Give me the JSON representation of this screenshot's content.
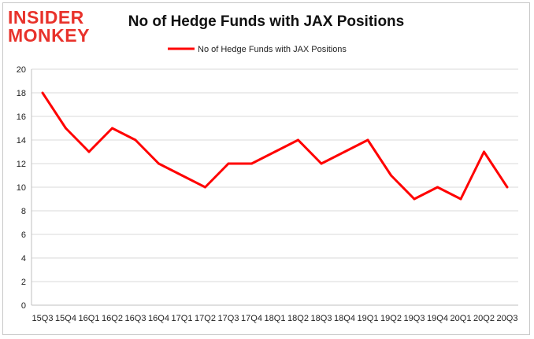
{
  "logo": {
    "line1": "INSIDER",
    "line2": "MONKEY",
    "color": "#e8322b"
  },
  "chart_data": {
    "type": "line",
    "title": "No of Hedge Funds with JAX Positions",
    "xlabel": "",
    "ylabel": "",
    "categories": [
      "15Q3",
      "15Q4",
      "16Q1",
      "16Q2",
      "16Q3",
      "16Q4",
      "17Q1",
      "17Q2",
      "17Q3",
      "17Q4",
      "18Q1",
      "18Q2",
      "18Q3",
      "18Q4",
      "19Q1",
      "19Q2",
      "19Q3",
      "19Q4",
      "20Q1",
      "20Q2",
      "20Q3"
    ],
    "series": [
      {
        "name": "No of Hedge Funds with JAX Positions",
        "color": "#ff0000",
        "values": [
          18,
          15,
          13,
          15,
          14,
          12,
          11,
          10,
          12,
          12,
          13,
          14,
          12,
          13,
          14,
          11,
          9,
          10,
          9,
          13,
          10
        ]
      }
    ],
    "ylim": [
      0,
      20
    ],
    "yticks": [
      0,
      2,
      4,
      6,
      8,
      10,
      12,
      14,
      16,
      18,
      20
    ],
    "grid": true,
    "legend_position": "top"
  }
}
